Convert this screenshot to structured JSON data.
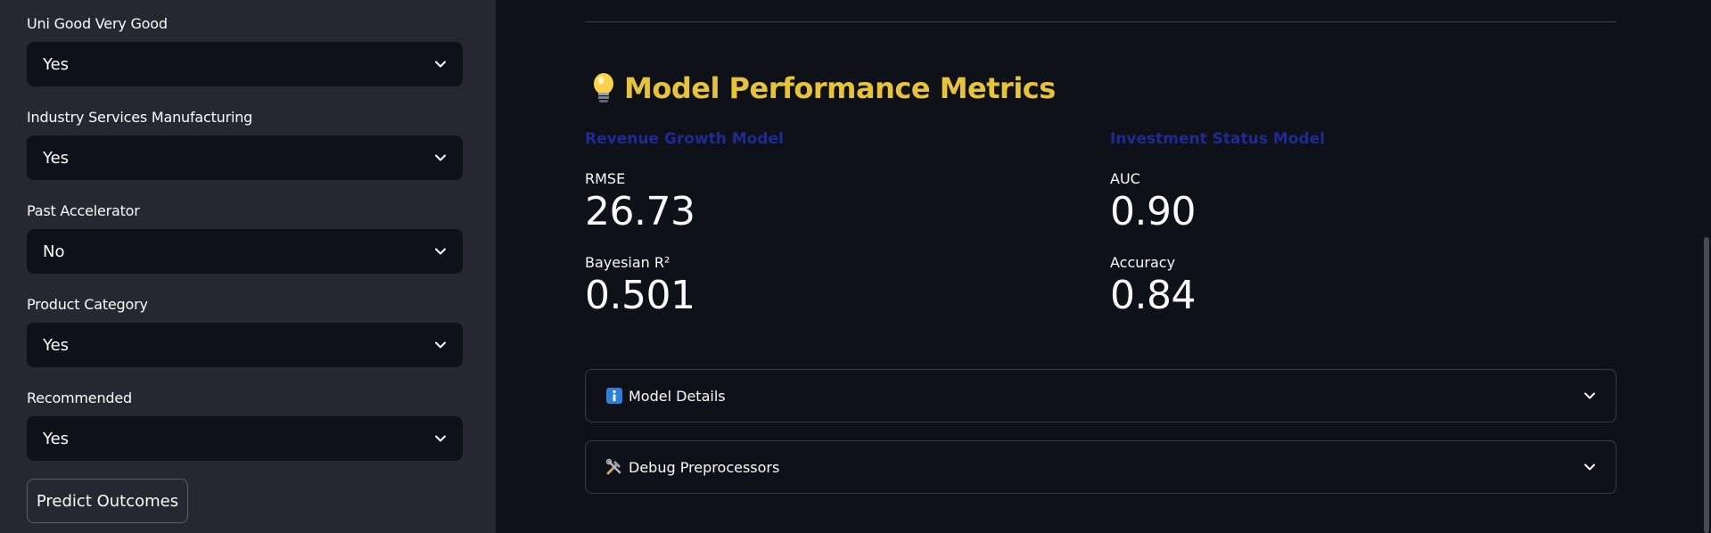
{
  "sidebar": {
    "fields": [
      {
        "label": "Uni Good Very Good",
        "value": "Yes"
      },
      {
        "label": "Industry Services Manufacturing",
        "value": "Yes"
      },
      {
        "label": "Past Accelerator",
        "value": "No"
      },
      {
        "label": "Product Category",
        "value": "Yes"
      },
      {
        "label": "Recommended",
        "value": "Yes"
      }
    ],
    "predict_button": "Predict Outcomes"
  },
  "main": {
    "heading": {
      "icon": "lightbulb-icon",
      "text": "Model Performance Metrics"
    },
    "columns": [
      {
        "title": "Revenue Growth Model",
        "metrics": [
          {
            "label": "RMSE",
            "value": "26.73"
          },
          {
            "label": "Bayesian R²",
            "value": "0.501"
          }
        ]
      },
      {
        "title": "Investment Status Model",
        "metrics": [
          {
            "label": "AUC",
            "value": "0.90"
          },
          {
            "label": "Accuracy",
            "value": "0.84"
          }
        ]
      }
    ],
    "expanders": [
      {
        "icon": "info-icon",
        "label": "Model Details"
      },
      {
        "icon": "tools-icon",
        "label": "Debug Preprocessors"
      }
    ]
  },
  "colors": {
    "sidebar_bg": "#262730",
    "main_bg": "#0e1117",
    "heading": "#e6c33a",
    "column_title": "#1f2a96",
    "info_icon": "#2f7fd8"
  }
}
